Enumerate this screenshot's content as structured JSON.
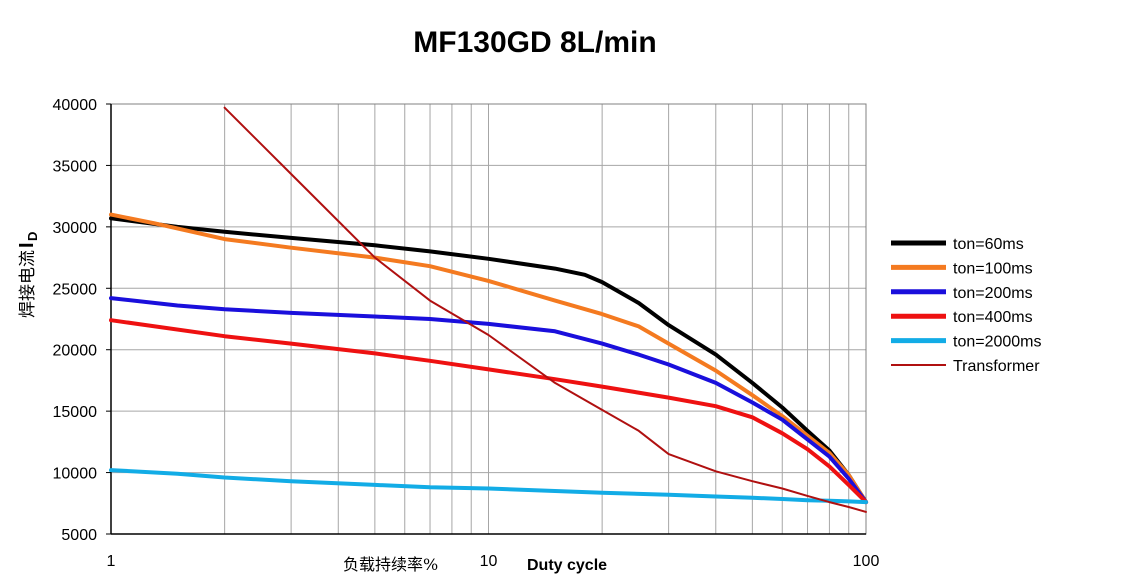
{
  "chart_data": {
    "type": "line",
    "title": "MF130GD 8L/min",
    "ylabel_text": "焊接电流",
    "ylabel_symbol": "I",
    "ylabel_subscript": "D",
    "xlabel_cn": "负载持续率%",
    "xlabel_en": "Duty cycle",
    "x_scale": "log",
    "xlim": [
      1,
      100
    ],
    "ylim": [
      5000,
      40000
    ],
    "x_ticks": [
      "1",
      "10",
      "100"
    ],
    "y_ticks": [
      "5000",
      "10000",
      "15000",
      "20000",
      "25000",
      "30000",
      "35000",
      "40000"
    ],
    "grid": true,
    "legend_position": "right",
    "series": [
      {
        "name": "ton=60ms",
        "color": "#000000",
        "points": [
          [
            1,
            30700
          ],
          [
            1.5,
            30000
          ],
          [
            2,
            29600
          ],
          [
            3,
            29100
          ],
          [
            5,
            28500
          ],
          [
            7,
            28000
          ],
          [
            10,
            27400
          ],
          [
            15,
            26600
          ],
          [
            18,
            26100
          ],
          [
            20,
            25500
          ],
          [
            25,
            23800
          ],
          [
            30,
            22000
          ],
          [
            40,
            19600
          ],
          [
            50,
            17300
          ],
          [
            60,
            15300
          ],
          [
            70,
            13400
          ],
          [
            80,
            11800
          ],
          [
            90,
            9800
          ],
          [
            100,
            7600
          ]
        ]
      },
      {
        "name": "ton=100ms",
        "color": "#f47a20",
        "points": [
          [
            1,
            31000
          ],
          [
            1.3,
            30300
          ],
          [
            2,
            29000
          ],
          [
            3,
            28300
          ],
          [
            5,
            27500
          ],
          [
            7,
            26800
          ],
          [
            10,
            25600
          ],
          [
            15,
            24000
          ],
          [
            20,
            22900
          ],
          [
            25,
            21900
          ],
          [
            30,
            20500
          ],
          [
            40,
            18300
          ],
          [
            50,
            16300
          ],
          [
            60,
            14600
          ],
          [
            70,
            13000
          ],
          [
            80,
            11600
          ],
          [
            90,
            9800
          ],
          [
            100,
            7600
          ]
        ]
      },
      {
        "name": "ton=200ms",
        "color": "#1a0fdc",
        "points": [
          [
            1,
            24200
          ],
          [
            1.5,
            23600
          ],
          [
            2,
            23300
          ],
          [
            3,
            23000
          ],
          [
            5,
            22700
          ],
          [
            7,
            22500
          ],
          [
            10,
            22100
          ],
          [
            15,
            21500
          ],
          [
            20,
            20500
          ],
          [
            25,
            19600
          ],
          [
            30,
            18800
          ],
          [
            40,
            17300
          ],
          [
            50,
            15700
          ],
          [
            60,
            14300
          ],
          [
            70,
            12700
          ],
          [
            80,
            11300
          ],
          [
            90,
            9500
          ],
          [
            100,
            7600
          ]
        ]
      },
      {
        "name": "ton=400ms",
        "color": "#ee1111",
        "points": [
          [
            1,
            22400
          ],
          [
            2,
            21100
          ],
          [
            3,
            20500
          ],
          [
            5,
            19700
          ],
          [
            7,
            19100
          ],
          [
            10,
            18400
          ],
          [
            15,
            17600
          ],
          [
            20,
            17000
          ],
          [
            30,
            16100
          ],
          [
            40,
            15400
          ],
          [
            50,
            14500
          ],
          [
            60,
            13200
          ],
          [
            70,
            11900
          ],
          [
            80,
            10500
          ],
          [
            90,
            9000
          ],
          [
            100,
            7600
          ]
        ]
      },
      {
        "name": "ton=2000ms",
        "color": "#12ace6",
        "points": [
          [
            1,
            10200
          ],
          [
            1.5,
            9900
          ],
          [
            2,
            9600
          ],
          [
            3,
            9300
          ],
          [
            5,
            9000
          ],
          [
            7,
            8800
          ],
          [
            10,
            8700
          ],
          [
            15,
            8500
          ],
          [
            20,
            8350
          ],
          [
            30,
            8200
          ],
          [
            40,
            8050
          ],
          [
            50,
            7950
          ],
          [
            60,
            7850
          ],
          [
            70,
            7750
          ],
          [
            80,
            7700
          ],
          [
            90,
            7650
          ],
          [
            100,
            7600
          ]
        ]
      },
      {
        "name": "Transformer",
        "color": "#b01010",
        "points": [
          [
            2,
            39700
          ],
          [
            3,
            34300
          ],
          [
            5,
            27500
          ],
          [
            7,
            24000
          ],
          [
            10,
            21200
          ],
          [
            15,
            17300
          ],
          [
            20,
            15100
          ],
          [
            25,
            13400
          ],
          [
            30,
            11500
          ],
          [
            40,
            10100
          ],
          [
            50,
            9300
          ],
          [
            60,
            8700
          ],
          [
            70,
            8100
          ],
          [
            80,
            7600
          ],
          [
            90,
            7200
          ],
          [
            100,
            6800
          ]
        ]
      }
    ]
  }
}
